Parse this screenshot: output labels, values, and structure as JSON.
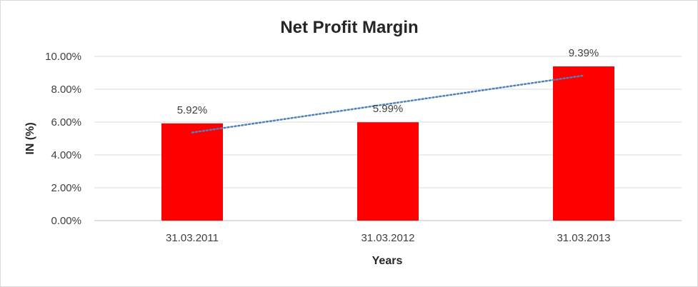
{
  "chart_data": {
    "type": "bar",
    "title": "Net Profit Margin",
    "xlabel": "Years",
    "ylabel": "IN (%)",
    "categories": [
      "31.03.2011",
      "31.03.2012",
      "31.03.2013"
    ],
    "values": [
      5.92,
      5.99,
      9.39
    ],
    "data_labels": [
      "5.92%",
      "5.99%",
      "9.39%"
    ],
    "ylim": [
      0,
      10
    ],
    "yticks": [
      0,
      2,
      4,
      6,
      8,
      10
    ],
    "ytick_labels": [
      "0.00%",
      "2.00%",
      "4.00%",
      "6.00%",
      "8.00%",
      "10.00%"
    ],
    "grid": true,
    "legend": "none",
    "trendline": {
      "type": "linear",
      "style": "dotted"
    },
    "colors": {
      "bar": "#ff0000",
      "trendline": "#4f81bd",
      "grid": "#d9d9d9",
      "axis": "#bfbfbf"
    }
  }
}
